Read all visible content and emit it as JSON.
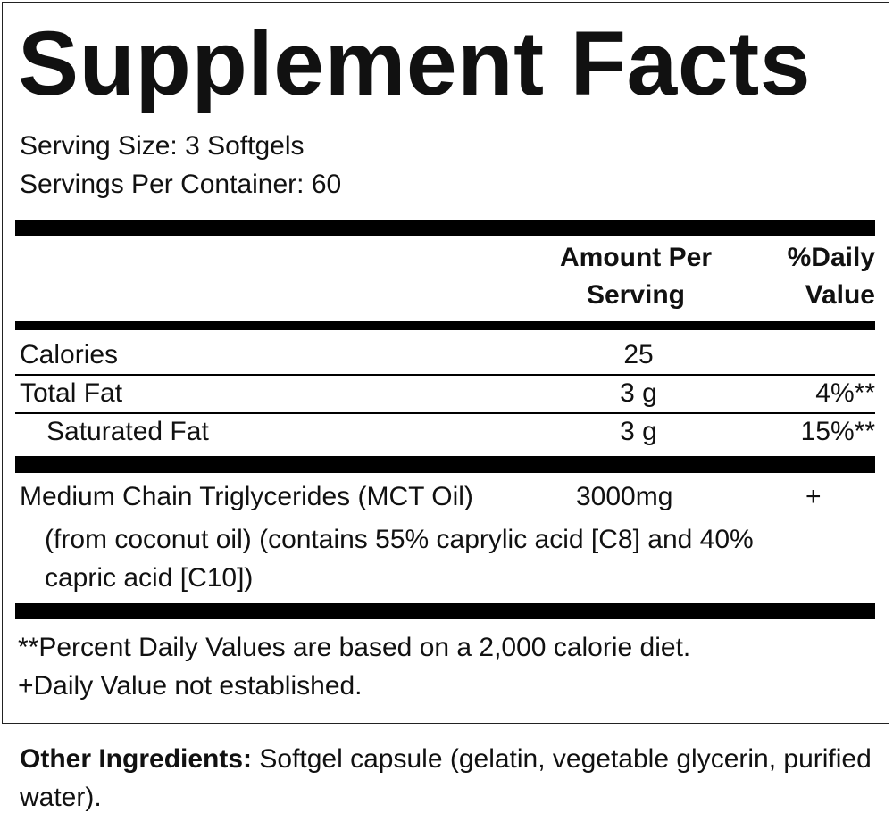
{
  "title": "Supplement Facts",
  "serving_size": "Serving Size: 3 Softgels",
  "servings_per_container": "Servings Per Container: 60",
  "table": {
    "header": {
      "amount": "Amount Per Serving",
      "daily_value": "%Daily Value"
    },
    "rows": [
      {
        "name": "Calories",
        "amount": "25"
      },
      {
        "name": "Total Fat",
        "amount": "3 g",
        "daily_value": "4%**"
      },
      {
        "name": "Saturated Fat",
        "amount": "3 g",
        "daily_value": "15%**"
      }
    ],
    "ingredient": {
      "name": "Medium Chain Triglycerides (MCT Oil)",
      "amount": "3000mg",
      "daily_value": "+",
      "note": "(from coconut oil) (contains 55% caprylic acid [C8] and 40% capric acid [C10])"
    }
  },
  "footnotes": [
    "**Percent Daily Values are based on a 2,000 calorie diet.",
    "+Daily Value not established."
  ],
  "other_ingredients": {
    "label": "Other Ingredients:",
    "text": "Softgel capsule (gelatin, vegetable glycerin, purified water)."
  }
}
